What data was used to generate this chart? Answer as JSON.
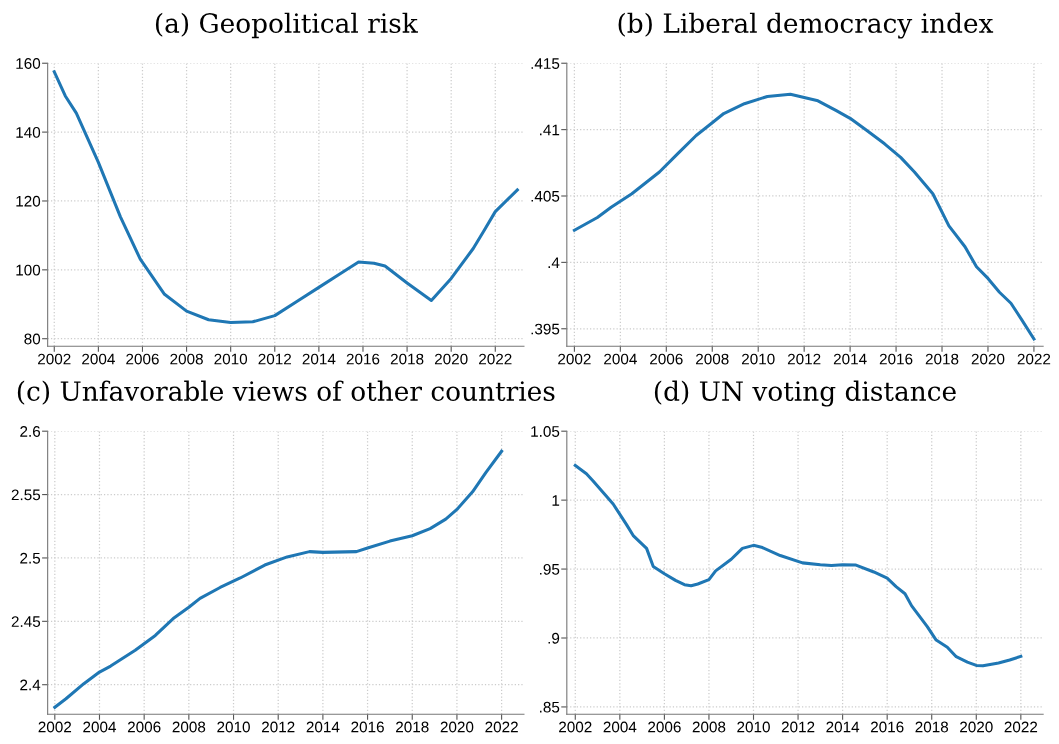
{
  "chart_data": [
    {
      "type": "line",
      "title": "(a) Geopolitical risk",
      "grid": true,
      "line_style": "solid",
      "marker": "none",
      "xlim": [
        2001.7,
        2023.3
      ],
      "ylim": [
        77.8,
        160
      ],
      "xticks": [
        2002,
        2004,
        2006,
        2008,
        2010,
        2012,
        2014,
        2016,
        2018,
        2020,
        2022
      ],
      "yticks": [
        80,
        100,
        120,
        140,
        160
      ],
      "series": [
        {
          "color": "#1f77b4",
          "x": [
            2002,
            2002.5,
            2003,
            2004,
            2005,
            2005.9,
            2007,
            2008,
            2009,
            2010,
            2011,
            2012,
            2013,
            2014,
            2015,
            2015.8,
            2016.5,
            2017,
            2018,
            2019.1,
            2020,
            2021,
            2021.5,
            2022,
            2023
          ],
          "values": [
            157.5,
            150.5,
            145.5,
            131.2,
            115.4,
            103.1,
            92.9,
            88,
            85.5,
            84.7,
            84.9,
            86.7,
            90.8,
            94.9,
            99,
            102.3,
            101.9,
            101.1,
            96.2,
            91.1,
            97.5,
            106.2,
            111.5,
            116.9,
            123.2
          ]
        }
      ]
    },
    {
      "type": "line",
      "title": "(b) Liberal democracy index",
      "grid": true,
      "line_style": "solid",
      "marker": "none",
      "xlim": [
        2001.67,
        2022.4
      ],
      "ylim": [
        0.39368,
        0.415
      ],
      "xticks": [
        2002,
        2004,
        2006,
        2008,
        2010,
        2012,
        2014,
        2016,
        2018,
        2020,
        2022
      ],
      "yticks": [
        {
          "value": 0.395,
          "label": ".395"
        },
        {
          "value": 0.4,
          "label": ".4"
        },
        {
          "value": 0.405,
          "label": ".405"
        },
        {
          "value": 0.41,
          "label": ".41"
        },
        {
          "value": 0.415,
          "label": ".415"
        }
      ],
      "series": [
        {
          "color": "#1f77b4",
          "x": [
            2002,
            2003,
            2003.6,
            2004.5,
            2005.7,
            2006.5,
            2007.3,
            2008,
            2008.5,
            2009.4,
            2010.4,
            2011.4,
            2012.6,
            2013.4,
            2014,
            2014.7,
            2015.5,
            2016.2,
            2016.8,
            2017.6,
            2018.3,
            2019,
            2019.5,
            2020,
            2020.5,
            2021,
            2021.5,
            2022
          ],
          "values": [
            0.40242,
            0.40338,
            0.40415,
            0.40517,
            0.40681,
            0.40819,
            0.40956,
            0.41052,
            0.41121,
            0.41195,
            0.4125,
            0.41266,
            0.41217,
            0.41143,
            0.41085,
            0.40997,
            0.40893,
            0.40791,
            0.40681,
            0.40517,
            0.40275,
            0.40118,
            0.39967,
            0.39879,
            0.39775,
            0.39692,
            0.3956,
            0.39423
          ]
        }
      ]
    },
    {
      "type": "line",
      "title": "(c) Unfavorable views of other countries",
      "grid": true,
      "line_style": "solid",
      "marker": "none",
      "xlim": [
        2001.68,
        2023
      ],
      "ylim": [
        2.3767,
        2.6
      ],
      "xticks": [
        2002,
        2004,
        2006,
        2008,
        2010,
        2012,
        2014,
        2016,
        2018,
        2020,
        2022
      ],
      "yticks": [
        2.4,
        2.45,
        2.5,
        2.55,
        2.6
      ],
      "series": [
        {
          "color": "#1f77b4",
          "x": [
            2002,
            2002.5,
            2003.3,
            2004,
            2004.5,
            2005.6,
            2006.5,
            2007.3,
            2008,
            2008.5,
            2009.4,
            2010.3,
            2011.4,
            2012.4,
            2013.4,
            2014,
            2015.5,
            2016,
            2017,
            2018,
            2018.8,
            2019.5,
            2020,
            2020.7,
            2021.3,
            2022
          ],
          "values": [
            2.3822,
            2.3889,
            2.4008,
            2.41,
            2.4147,
            2.4272,
            2.4389,
            2.4522,
            2.4611,
            2.4681,
            2.4767,
            2.4842,
            2.4944,
            2.5008,
            2.505,
            2.5044,
            2.505,
            2.5078,
            2.5133,
            2.5175,
            2.5231,
            2.5306,
            2.5383,
            2.5522,
            2.5675,
            2.5842
          ]
        }
      ]
    },
    {
      "type": "line",
      "title": "(d) UN voting distance",
      "grid": true,
      "line_style": "solid",
      "marker": "none",
      "xlim": [
        2001.62,
        2023
      ],
      "ylim": [
        0.8447,
        1.05
      ],
      "xticks": [
        2002,
        2004,
        2006,
        2008,
        2010,
        2012,
        2014,
        2016,
        2018,
        2020,
        2022
      ],
      "yticks": [
        {
          "value": 0.85,
          "label": ".85"
        },
        {
          "value": 0.9,
          "label": ".9"
        },
        {
          "value": 0.95,
          "label": ".95"
        },
        1,
        1.05
      ],
      "series": [
        {
          "color": "#1f77b4",
          "x": [
            2002,
            2002.5,
            2002.8,
            2003.3,
            2003.7,
            2004.3,
            2004.6,
            2005.2,
            2005.5,
            2006,
            2006.5,
            2006.9,
            2007.2,
            2007.5,
            2008,
            2008.3,
            2009,
            2009.5,
            2010,
            2010.4,
            2011.2,
            2012.2,
            2013,
            2013.5,
            2014,
            2014.6,
            2015.4,
            2016,
            2016.4,
            2016.8,
            2017.1,
            2017.8,
            2018.2,
            2018.7,
            2019.1,
            2019.6,
            2020,
            2020.3,
            2021,
            2021.5,
            2022
          ],
          "values": [
            1.0252,
            1.0191,
            1.0139,
            1.0046,
            0.9972,
            0.9822,
            0.9743,
            0.965,
            0.9518,
            0.9466,
            0.9418,
            0.9387,
            0.9379,
            0.9392,
            0.9423,
            0.9487,
            0.9571,
            0.965,
            0.9672,
            0.9656,
            0.9598,
            0.9545,
            0.9532,
            0.9526,
            0.9532,
            0.9529,
            0.9479,
            0.9434,
            0.9373,
            0.9321,
            0.9233,
            0.9083,
            0.8985,
            0.8933,
            0.8864,
            0.8825,
            0.8801,
            0.8798,
            0.8819,
            0.884,
            0.8867
          ]
        }
      ]
    }
  ]
}
